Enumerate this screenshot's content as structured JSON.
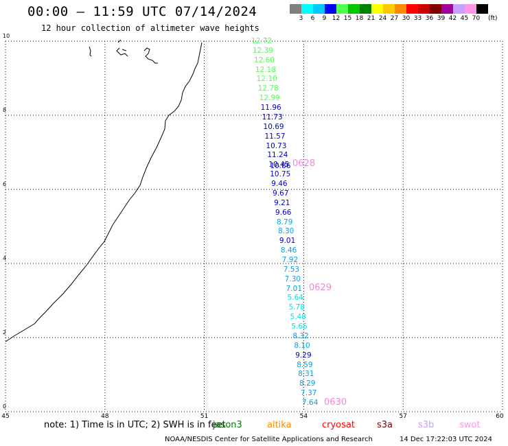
{
  "header": {
    "title": "00:00 – 11:59 UTC 07/14/2024",
    "subtitle": "12 hour collection of altimeter wave heights"
  },
  "legend": {
    "colors": [
      "#808080",
      "#00ffff",
      "#00c8ff",
      "#0000ff",
      "#50ff50",
      "#00c800",
      "#008000",
      "#ffff00",
      "#ffc800",
      "#ff8c00",
      "#ff0000",
      "#c80000",
      "#800000",
      "#a000a0",
      "#c8a0ff",
      "#ff96e6",
      "#000000"
    ],
    "labels": [
      "3",
      "6",
      "9",
      "12",
      "15",
      "18",
      "21",
      "24",
      "27",
      "30",
      "33",
      "36",
      "39",
      "42",
      "45",
      "70"
    ],
    "unit": "(ft)"
  },
  "axes": {
    "x_ticks": [
      "45",
      "48",
      "51",
      "54",
      "57",
      "60"
    ],
    "y_ticks": [
      "10",
      "8",
      "6",
      "4",
      "2",
      "0"
    ],
    "x_range": [
      45,
      60
    ],
    "y_range": [
      0,
      10
    ]
  },
  "wave_heights": [
    {
      "value": "12.72",
      "color": "#50ff50"
    },
    {
      "value": "12.39",
      "color": "#50ff50"
    },
    {
      "value": "12.60",
      "color": "#50ff50"
    },
    {
      "value": "12.18",
      "color": "#50ff50"
    },
    {
      "value": "12.10",
      "color": "#50ff50"
    },
    {
      "value": "12.78",
      "color": "#50ff50"
    },
    {
      "value": "12.99",
      "color": "#50ff50"
    },
    {
      "value": "11.96",
      "color": "#0000c8"
    },
    {
      "value": "11.73",
      "color": "#0000c8"
    },
    {
      "value": "10.69",
      "color": "#0000c8"
    },
    {
      "value": "11.57",
      "color": "#0000c8"
    },
    {
      "value": "10.73",
      "color": "#0000c8"
    },
    {
      "value": "11.24",
      "color": "#0000c8"
    },
    {
      "value": "10.45",
      "color": "#0000c8"
    },
    {
      "value": "10.75",
      "color": "#0000c8"
    },
    {
      "value": "9.46",
      "color": "#0000c8"
    },
    {
      "value": "9.67",
      "color": "#0000c8"
    },
    {
      "value": "9.21",
      "color": "#0000c8"
    },
    {
      "value": "9.66",
      "color": "#0000c8"
    },
    {
      "value": "8.79",
      "color": "#00a0e6"
    },
    {
      "value": "8.30",
      "color": "#00a0e6"
    },
    {
      "value": "9.01",
      "color": "#0000c8"
    },
    {
      "value": "8.46",
      "color": "#00a0e6"
    },
    {
      "value": "7.92",
      "color": "#00a0e6"
    },
    {
      "value": "7.53",
      "color": "#00a0e6"
    },
    {
      "value": "7.30",
      "color": "#00a0e6"
    },
    {
      "value": "7.01",
      "color": "#00a0e6"
    },
    {
      "value": "5.64",
      "color": "#00e0e0"
    },
    {
      "value": "5.78",
      "color": "#00e0e0"
    },
    {
      "value": "5.48",
      "color": "#00e0e0"
    },
    {
      "value": "5.65",
      "color": "#00e0e0"
    },
    {
      "value": "8.32",
      "color": "#00a0e6"
    },
    {
      "value": "8.10",
      "color": "#00a0e6"
    },
    {
      "value": "9.29",
      "color": "#0000c8"
    },
    {
      "value": "8.59",
      "color": "#00a0e6"
    },
    {
      "value": "8.31",
      "color": "#00a0e6"
    },
    {
      "value": "8.29",
      "color": "#00a0e6"
    },
    {
      "value": "7.37",
      "color": "#00a0e6"
    },
    {
      "value": "7.64",
      "color": "#00a0e6"
    }
  ],
  "overlap_label": {
    "value": "10.86",
    "color": "#0000c8"
  },
  "pass_hours": [
    "0628",
    "0629",
    "0630"
  ],
  "footer": {
    "note": "note: 1) Time is in UTC; 2) SWH is in feet",
    "satellites": [
      {
        "name": "jason3",
        "color": "#008000"
      },
      {
        "name": "altika",
        "color": "#ff8c00"
      },
      {
        "name": "cryosat",
        "color": "#ff0000"
      },
      {
        "name": "s3a",
        "color": "#800000"
      },
      {
        "name": "s3b",
        "color": "#c8a0ff"
      },
      {
        "name": "swot",
        "color": "#ff96e6"
      }
    ],
    "credit": "NOAA/NESDIS Center for Satellite Applications and Research",
    "timestamp": "14 Dec 17:22:03 UTC 2024"
  }
}
